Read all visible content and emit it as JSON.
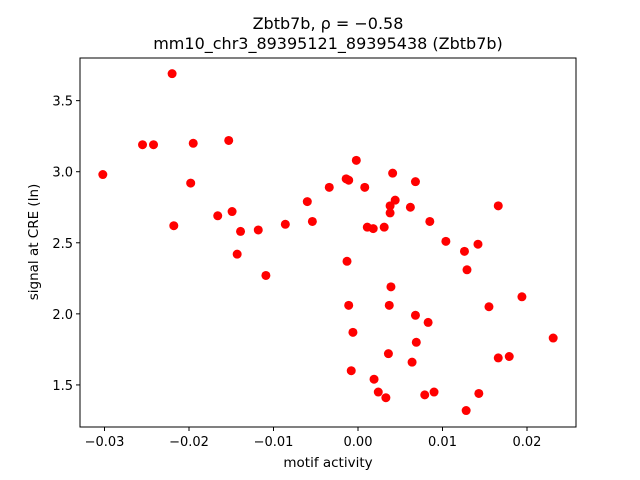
{
  "chart_data": {
    "type": "scatter",
    "title": "Zbtb7b, ρ = −0.58",
    "subtitle": "mm10_chr3_89395121_89395438 (Zbtb7b)",
    "xlabel": "motif activity",
    "ylabel": "signal at CRE (ln)",
    "xlim": [
      -0.0329,
      0.0258
    ],
    "ylim": [
      1.204,
      3.8
    ],
    "xticks": [
      -0.03,
      -0.02,
      -0.01,
      0.0,
      0.01,
      0.02
    ],
    "xtick_labels": [
      "−0.03",
      "−0.02",
      "−0.01",
      "0.00",
      "0.01",
      "0.02"
    ],
    "yticks": [
      1.5,
      2.0,
      2.5,
      3.0,
      3.5
    ],
    "ytick_labels": [
      "1.5",
      "2.0",
      "2.5",
      "3.0",
      "3.5"
    ],
    "grid": false,
    "marker_color": "#ff0000",
    "points": [
      [
        -0.022,
        3.69
      ],
      [
        -0.0302,
        2.98
      ],
      [
        -0.0255,
        3.19
      ],
      [
        -0.0242,
        3.19
      ],
      [
        -0.0195,
        3.2
      ],
      [
        -0.0153,
        3.22
      ],
      [
        -0.0198,
        2.92
      ],
      [
        -0.0218,
        2.62
      ],
      [
        -0.0166,
        2.69
      ],
      [
        -0.0149,
        2.72
      ],
      [
        -0.0139,
        2.58
      ],
      [
        -0.0118,
        2.59
      ],
      [
        -0.0143,
        2.42
      ],
      [
        -0.0109,
        2.27
      ],
      [
        -0.0086,
        2.63
      ],
      [
        -0.006,
        2.79
      ],
      [
        -0.0054,
        2.65
      ],
      [
        -0.0034,
        2.89
      ],
      [
        -0.0014,
        2.95
      ],
      [
        -0.0011,
        2.94
      ],
      [
        -0.0002,
        3.08
      ],
      [
        0.0008,
        2.89
      ],
      [
        -0.0013,
        2.37
      ],
      [
        -0.0011,
        2.06
      ],
      [
        -0.0006,
        1.87
      ],
      [
        -0.0008,
        1.6
      ],
      [
        0.0011,
        2.61
      ],
      [
        0.0018,
        2.6
      ],
      [
        0.0031,
        2.61
      ],
      [
        0.0041,
        2.99
      ],
      [
        0.0038,
        2.76
      ],
      [
        0.0044,
        2.8
      ],
      [
        0.0038,
        2.71
      ],
      [
        0.0068,
        2.93
      ],
      [
        0.0062,
        2.75
      ],
      [
        0.0085,
        2.65
      ],
      [
        0.0039,
        2.19
      ],
      [
        0.0037,
        2.06
      ],
      [
        0.0068,
        1.99
      ],
      [
        0.0083,
        1.94
      ],
      [
        0.0036,
        1.72
      ],
      [
        0.0069,
        1.8
      ],
      [
        0.0064,
        1.66
      ],
      [
        0.0019,
        1.54
      ],
      [
        0.0024,
        1.45
      ],
      [
        0.0033,
        1.41
      ],
      [
        0.0079,
        1.43
      ],
      [
        0.009,
        1.45
      ],
      [
        0.0104,
        2.51
      ],
      [
        0.0126,
        2.44
      ],
      [
        0.0142,
        2.49
      ],
      [
        0.0129,
        2.31
      ],
      [
        0.0166,
        2.76
      ],
      [
        0.0155,
        2.05
      ],
      [
        0.0194,
        2.12
      ],
      [
        0.0166,
        1.69
      ],
      [
        0.0179,
        1.7
      ],
      [
        0.0231,
        1.83
      ],
      [
        0.0143,
        1.44
      ],
      [
        0.0128,
        1.32
      ]
    ]
  }
}
